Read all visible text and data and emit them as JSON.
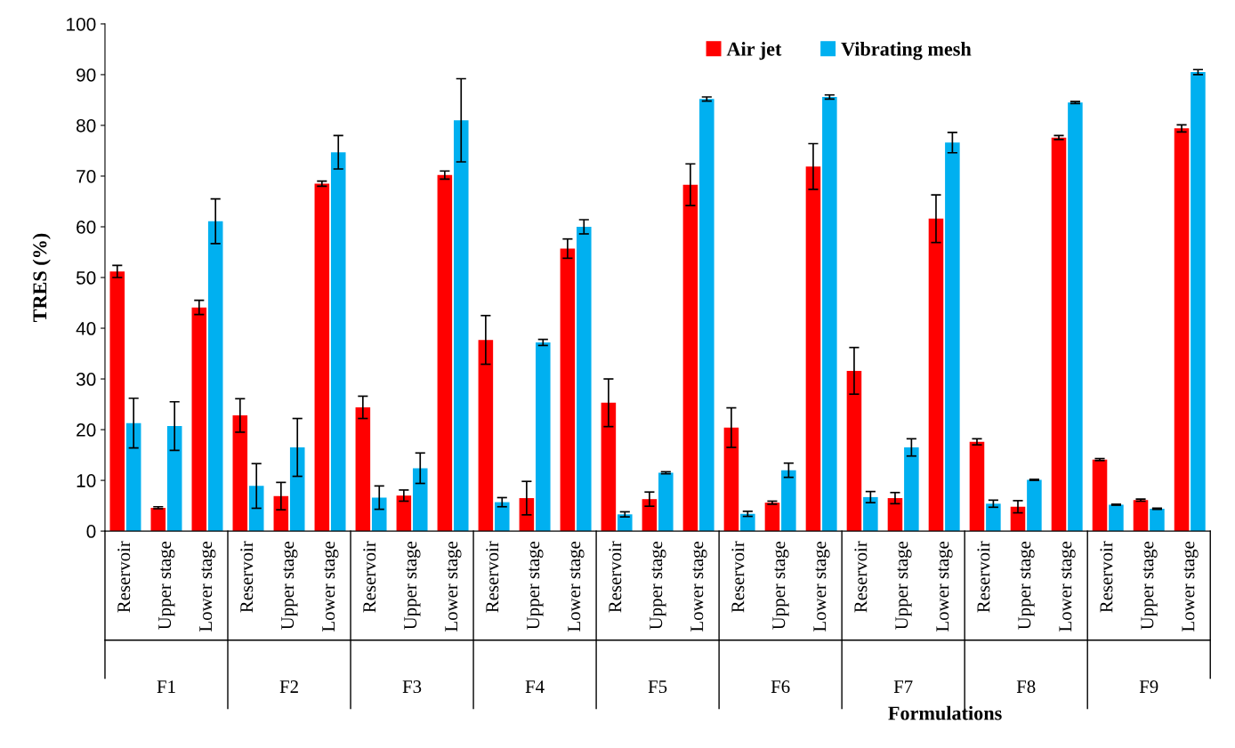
{
  "chart_data": {
    "type": "bar",
    "categories": [
      "Reservoir",
      "Upper stage",
      "Lower stage",
      "Reservoir",
      "Upper stage",
      "Lower stage",
      "Reservoir",
      "Upper stage",
      "Lower stage",
      "Reservoir",
      "Upper stage",
      "Lower stage",
      "Reservoir",
      "Upper stage",
      "Lower stage",
      "Reservoir",
      "Upper stage",
      "Lower stage",
      "Reservoir",
      "Upper stage",
      "Lower stage",
      "Reservoir",
      "Upper stage",
      "Lower stage",
      "Reservoir",
      "Upper stage",
      "Lower stage"
    ],
    "series": [
      {
        "name": "Air jet",
        "color": "#ff0000",
        "values": [
          51.2,
          4.6,
          44.1,
          22.8,
          6.9,
          68.5,
          24.4,
          7.0,
          70.2,
          37.7,
          6.5,
          55.7,
          25.3,
          6.3,
          68.3,
          20.4,
          5.6,
          71.9,
          31.6,
          6.5,
          61.6,
          17.6,
          4.8,
          77.6,
          14.1,
          6.1,
          79.4
        ],
        "errors": [
          1.2,
          0.2,
          1.4,
          3.3,
          2.7,
          0.5,
          2.2,
          1.1,
          0.8,
          4.8,
          3.3,
          1.9,
          4.7,
          1.4,
          4.1,
          3.9,
          0.3,
          4.5,
          4.6,
          1.1,
          4.7,
          0.6,
          1.2,
          0.4,
          0.2,
          0.2,
          0.7
        ]
      },
      {
        "name": "Vibrating mesh",
        "color": "#00b0f0",
        "values": [
          21.3,
          20.7,
          61.1,
          8.9,
          16.5,
          74.7,
          6.6,
          12.4,
          81.0,
          5.7,
          37.2,
          60.0,
          3.3,
          11.5,
          85.2,
          3.4,
          12.0,
          85.6,
          6.7,
          16.5,
          76.6,
          5.4,
          10.1,
          84.5,
          5.2,
          4.4,
          90.5
        ],
        "errors": [
          4.9,
          4.8,
          4.4,
          4.4,
          5.7,
          3.3,
          2.3,
          3.0,
          8.2,
          0.9,
          0.6,
          1.4,
          0.5,
          0.2,
          0.4,
          0.5,
          1.4,
          0.4,
          1.1,
          1.7,
          2.0,
          0.7,
          0.1,
          0.2,
          0.1,
          0.1,
          0.5
        ]
      }
    ],
    "annotations": [
      "F1",
      "F2",
      "F3",
      "F4",
      "F5",
      "F6",
      "F7",
      "F8",
      "F9"
    ],
    "xlabel": "Formulations",
    "ylabel": "TRES (%)",
    "ylim": [
      0,
      100
    ],
    "yticks": [
      0,
      10,
      20,
      30,
      40,
      50,
      60,
      70,
      80,
      90,
      100
    ],
    "grid": false,
    "legend": "top right"
  }
}
